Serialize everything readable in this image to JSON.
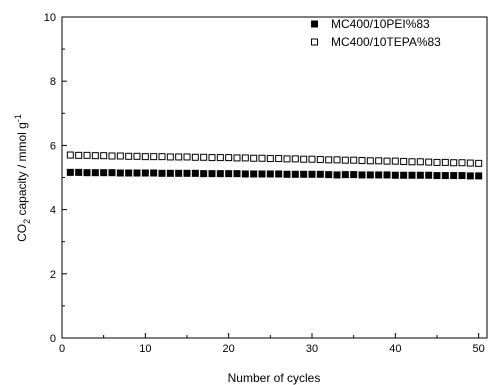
{
  "chart_data": {
    "type": "scatter",
    "xlabel": "Number of cycles",
    "ylabel": {
      "main": "CO",
      "sub": "2",
      "rest": " capacity / mmol g",
      "sup": "-1"
    },
    "xlim": [
      0,
      51
    ],
    "ylim": [
      0,
      10
    ],
    "xticks": [
      "0",
      "10",
      "20",
      "30",
      "40",
      "50"
    ],
    "yticks": [
      "0",
      "2",
      "4",
      "6",
      "8",
      "10"
    ],
    "legend_position": "top-right",
    "grid": false,
    "series": [
      {
        "name": "MC400/10PEI%83",
        "marker": "filled-square",
        "color": "#000000",
        "x": [
          1,
          2,
          3,
          4,
          5,
          6,
          7,
          8,
          9,
          10,
          11,
          12,
          13,
          14,
          15,
          16,
          17,
          18,
          19,
          20,
          21,
          22,
          23,
          24,
          25,
          26,
          27,
          28,
          29,
          30,
          31,
          32,
          33,
          34,
          35,
          36,
          37,
          38,
          39,
          40,
          41,
          42,
          43,
          44,
          45,
          46,
          47,
          48,
          49,
          50
        ],
        "y": [
          5.16,
          5.16,
          5.15,
          5.15,
          5.15,
          5.15,
          5.14,
          5.14,
          5.14,
          5.14,
          5.14,
          5.13,
          5.13,
          5.13,
          5.13,
          5.13,
          5.12,
          5.12,
          5.12,
          5.12,
          5.12,
          5.11,
          5.11,
          5.11,
          5.11,
          5.11,
          5.1,
          5.1,
          5.1,
          5.1,
          5.1,
          5.09,
          5.08,
          5.09,
          5.09,
          5.08,
          5.08,
          5.08,
          5.08,
          5.07,
          5.07,
          5.07,
          5.07,
          5.07,
          5.06,
          5.06,
          5.06,
          5.06,
          5.05,
          5.05
        ]
      },
      {
        "name": "MC400/10TEPA%83",
        "marker": "open-square",
        "color": "#000000",
        "x": [
          1,
          2,
          3,
          4,
          5,
          6,
          7,
          8,
          9,
          10,
          11,
          12,
          13,
          14,
          15,
          16,
          17,
          18,
          19,
          20,
          21,
          22,
          23,
          24,
          25,
          26,
          27,
          28,
          29,
          30,
          31,
          32,
          33,
          34,
          35,
          36,
          37,
          38,
          39,
          40,
          41,
          42,
          43,
          44,
          45,
          46,
          47,
          48,
          49,
          50
        ],
        "y": [
          5.7,
          5.69,
          5.69,
          5.68,
          5.68,
          5.67,
          5.67,
          5.66,
          5.66,
          5.65,
          5.65,
          5.65,
          5.64,
          5.64,
          5.64,
          5.63,
          5.63,
          5.62,
          5.62,
          5.62,
          5.61,
          5.61,
          5.6,
          5.6,
          5.59,
          5.59,
          5.58,
          5.58,
          5.57,
          5.57,
          5.56,
          5.55,
          5.55,
          5.54,
          5.54,
          5.53,
          5.52,
          5.52,
          5.51,
          5.51,
          5.5,
          5.49,
          5.49,
          5.48,
          5.47,
          5.47,
          5.46,
          5.46,
          5.45,
          5.44
        ]
      }
    ]
  }
}
